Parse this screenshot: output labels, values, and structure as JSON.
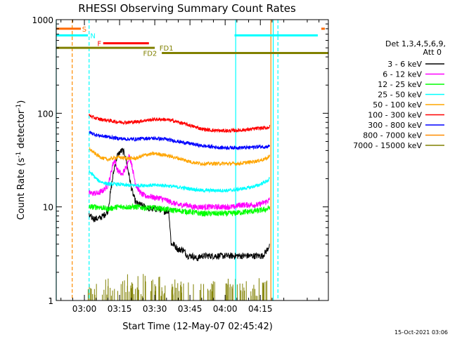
{
  "chart_data": {
    "type": "line",
    "title": "RHESSI Observing Summary Count Rates",
    "xlabel": "Start Time (12-May-07 02:45:42)",
    "ylabel_main": "Count Rate (s",
    "ylabel_sup1": "-1",
    "ylabel_mid": " detector",
    "ylabel_sup2": "-1",
    "ylabel_end": ")",
    "xlim": [
      -12,
      104
    ],
    "ylim": [
      1,
      1000
    ],
    "yscale": "log",
    "x_unit_note": "minutes after 03:00 UT",
    "x_ticks": [
      {
        "value": 0,
        "label": "03:00"
      },
      {
        "value": 15,
        "label": "03:15"
      },
      {
        "value": 30,
        "label": "03:30"
      },
      {
        "value": 45,
        "label": "03:45"
      },
      {
        "value": 60,
        "label": "04:00"
      },
      {
        "value": 75,
        "label": "04:15"
      }
    ],
    "y_ticks": [
      {
        "value": 1,
        "label": "1"
      },
      {
        "value": 10,
        "label": "10"
      },
      {
        "value": 100,
        "label": "100"
      },
      {
        "value": 1000,
        "label": "1000"
      }
    ],
    "legend_title_1": "Det 1,3,4,5,6,9,",
    "legend_title_2": "Att 0",
    "legend_position": "right",
    "series": [
      {
        "name": "3 - 6 keV",
        "color": "#000000",
        "x": [
          2,
          4,
          6,
          8,
          10,
          12,
          13,
          14,
          15,
          16,
          17,
          18,
          19,
          20,
          21,
          22,
          24,
          26,
          28,
          30,
          32,
          34,
          36,
          37,
          38,
          40,
          42,
          44,
          46,
          48,
          50,
          52,
          54,
          56,
          58,
          60,
          62,
          64,
          66,
          68,
          70,
          72,
          74,
          76,
          78,
          79
        ],
        "y": [
          8,
          7.5,
          7.5,
          8,
          9,
          20,
          28,
          35,
          38,
          40,
          38,
          30,
          22,
          16,
          13,
          11,
          10.5,
          10,
          9.5,
          9.5,
          9.5,
          9,
          9,
          4,
          4,
          3.5,
          3.5,
          3,
          3,
          2.8,
          3,
          3,
          3,
          3,
          3,
          3,
          3,
          3,
          3,
          3,
          3,
          3,
          3,
          3,
          3.5,
          4
        ]
      },
      {
        "name": "6 - 12 keV",
        "color": "#ff00ff",
        "x": [
          2,
          4,
          6,
          8,
          10,
          11,
          12,
          13,
          14,
          16,
          18,
          19,
          20,
          21,
          22,
          24,
          26,
          28,
          30,
          32,
          34,
          36,
          38,
          40,
          42,
          44,
          46,
          48,
          50,
          52,
          54,
          56,
          58,
          60,
          62,
          64,
          66,
          68,
          70,
          72,
          74,
          76,
          78,
          79
        ],
        "y": [
          14,
          14,
          14,
          15,
          17,
          21,
          28,
          32,
          25,
          22,
          27,
          35,
          30,
          22,
          17,
          14,
          13,
          13,
          12.5,
          12.5,
          12,
          11.5,
          11,
          10.5,
          10.5,
          10.5,
          10,
          10,
          10,
          10,
          10,
          10,
          10,
          10,
          10,
          10,
          10.5,
          10.5,
          10.5,
          10.5,
          10.5,
          11,
          11.5,
          12
        ]
      },
      {
        "name": "12 - 25 keV",
        "color": "#00ff00",
        "x": [
          2,
          6,
          10,
          14,
          18,
          22,
          26,
          30,
          34,
          38,
          42,
          46,
          50,
          54,
          58,
          62,
          66,
          70,
          74,
          78,
          79
        ],
        "y": [
          10,
          10,
          9.5,
          10,
          10,
          10,
          9.8,
          9.8,
          9.5,
          9.2,
          9,
          8.8,
          8.5,
          8.5,
          8.5,
          8.5,
          8.7,
          8.9,
          9.1,
          9.5,
          10
        ]
      },
      {
        "name": "25 - 50 keV",
        "color": "#00ffff",
        "x": [
          2,
          6,
          10,
          14,
          18,
          22,
          26,
          30,
          34,
          38,
          42,
          46,
          50,
          54,
          58,
          62,
          66,
          70,
          74,
          78,
          79
        ],
        "y": [
          24,
          19,
          17.5,
          17.5,
          17,
          17,
          17,
          17,
          17,
          16.5,
          16,
          15.5,
          15,
          15,
          15,
          15,
          15.5,
          16,
          17,
          19,
          20
        ]
      },
      {
        "name": "50 - 100 keV",
        "color": "#ffa500",
        "x": [
          2,
          4,
          6,
          8,
          10,
          14,
          18,
          22,
          26,
          30,
          34,
          38,
          42,
          46,
          50,
          54,
          58,
          62,
          66,
          70,
          74,
          78,
          79
        ],
        "y": [
          42,
          38,
          35,
          33,
          32,
          34,
          33,
          33,
          36,
          37,
          36,
          34,
          32,
          30,
          29,
          29,
          29,
          29,
          29,
          30,
          31,
          33,
          36
        ]
      },
      {
        "name": "100 - 300 keV",
        "color": "#ff0000",
        "x": [
          2,
          4,
          6,
          10,
          14,
          18,
          22,
          26,
          30,
          34,
          38,
          42,
          46,
          50,
          54,
          58,
          62,
          66,
          70,
          74,
          78,
          79
        ],
        "y": [
          95,
          90,
          87,
          84,
          81,
          80,
          81,
          84,
          86,
          86,
          83,
          78,
          73,
          68,
          66,
          65,
          65,
          66,
          67,
          69,
          70,
          72
        ]
      },
      {
        "name": "300 - 800 keV",
        "color": "#0000ff",
        "x": [
          2,
          4,
          6,
          10,
          14,
          18,
          22,
          26,
          30,
          34,
          38,
          42,
          46,
          50,
          54,
          58,
          62,
          66,
          70,
          74,
          78,
          79
        ],
        "y": [
          63,
          60,
          58,
          56,
          54,
          53,
          53,
          54,
          54,
          53,
          51,
          49,
          47,
          45,
          44,
          43,
          43,
          43,
          43,
          44,
          44,
          45
        ]
      },
      {
        "name": "800 - 7000 keV",
        "color": "#ff8c00",
        "x": [],
        "y": []
      },
      {
        "name": "7000 - 15000 keV",
        "color": "#808000",
        "x": [],
        "y": []
      }
    ],
    "flag_labels": [
      {
        "label": "S",
        "color": "#ff6a00",
        "x_start": -12,
        "x_end": -1.5,
        "y": 800,
        "x_label": -1
      },
      {
        "label": "N",
        "color": "#00ffff",
        "x_start": -12,
        "x_end": 1.5,
        "y": 680,
        "x_label": 2.5
      },
      {
        "label": "F",
        "color": "#ff0000",
        "x_start": 8,
        "x_end": 27.5,
        "y": 560,
        "x_label": 5.5
      },
      {
        "label": "FD1",
        "color": "#808000",
        "x_start": -12,
        "x_end": 30,
        "y": 500,
        "x_label": 32
      },
      {
        "label": "FD2",
        "color": "#808000",
        "x_start": 33,
        "x_end": 104,
        "y": 440,
        "x_label": 25
      }
    ],
    "flag_lines_right": [
      {
        "color": "#ff6a00",
        "x_start": 101,
        "x_end": 102.5,
        "y": 800
      },
      {
        "color": "#00ffff",
        "x_start": 64,
        "x_end": 99.5,
        "y": 680
      }
    ],
    "vertical_markers": [
      {
        "color": "#ff8c00",
        "x": -5.2,
        "dashed": true
      },
      {
        "color": "#00ffff",
        "x": 2,
        "dashed": true
      },
      {
        "color": "#00ffff",
        "x": -12,
        "dashed": false
      },
      {
        "color": "#00ffff",
        "x": 64.5,
        "dashed": false
      },
      {
        "color": "#ff8c00",
        "x": 79.5,
        "dashed": false
      },
      {
        "color": "#00ffff",
        "x": 80.5,
        "dashed": false
      },
      {
        "color": "#00ffff",
        "x": 82.5,
        "dashed": true
      }
    ],
    "background_bursts": {
      "color": "#808000",
      "x_start": 1,
      "x_end": 78,
      "note": "sparse 7000-15000 keV counts at the 1 count level"
    },
    "footer_date": "15-Oct-2021 03:06"
  }
}
